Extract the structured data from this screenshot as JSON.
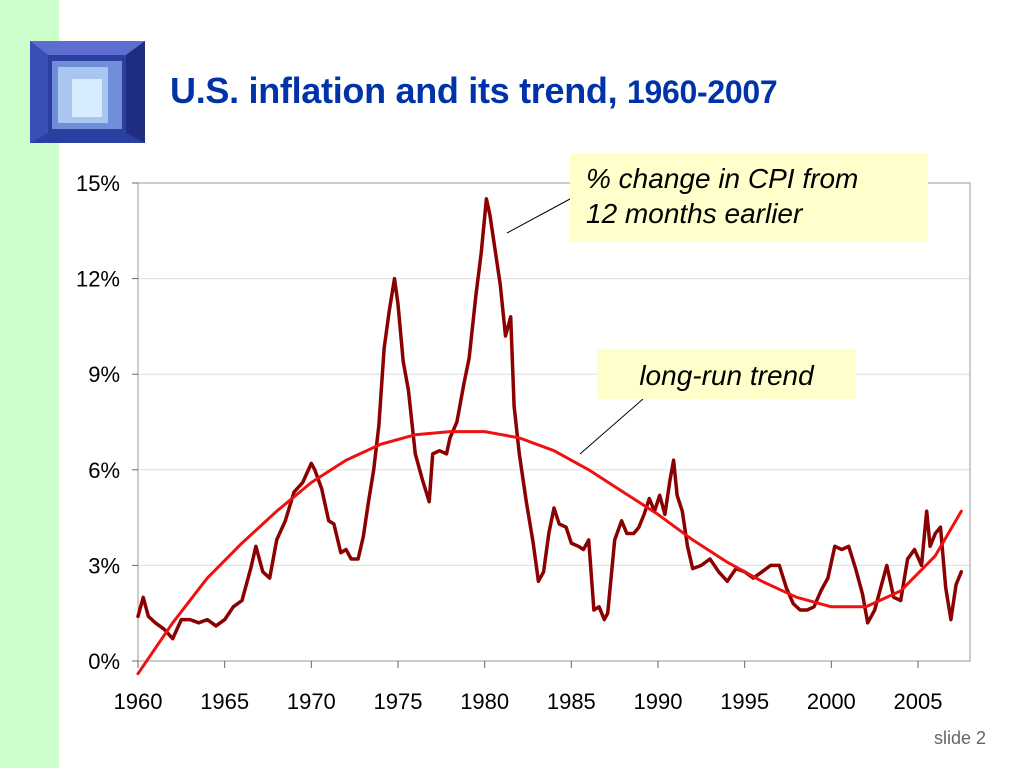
{
  "slide": {
    "title_main": "U.S. inflation and its trend,",
    "title_years": "1960-2007",
    "slide_label": "slide 2"
  },
  "colors": {
    "title": "#0033aa",
    "left_bar": "#ccffcc",
    "cpi_line": "#8b0000",
    "trend_line": "#ee1111",
    "callout_bg": "#ffffcc"
  },
  "annotations": {
    "cpi_line1": "% change in CPI from",
    "cpi_line2": "12 months earlier",
    "trend": "long-run trend"
  },
  "chart_data": {
    "type": "line",
    "title": "U.S. inflation and its trend, 1960-2007",
    "xlabel": "",
    "ylabel": "",
    "xlim": [
      1960,
      2008
    ],
    "ylim": [
      0,
      15
    ],
    "x_ticks": [
      1960,
      1965,
      1970,
      1975,
      1980,
      1985,
      1990,
      1995,
      2000,
      2005
    ],
    "y_ticks": [
      0,
      3,
      6,
      9,
      12,
      15
    ],
    "y_tick_labels": [
      "0%",
      "3%",
      "6%",
      "9%",
      "12%",
      "15%"
    ],
    "grid": "horizontal",
    "series": [
      {
        "name": "% change in CPI from 12 months earlier",
        "x": [
          1960.0,
          1960.3,
          1960.6,
          1961.0,
          1961.5,
          1962.0,
          1962.5,
          1963.0,
          1963.5,
          1964.0,
          1964.5,
          1965.0,
          1965.5,
          1966.0,
          1966.5,
          1966.8,
          1967.2,
          1967.6,
          1968.0,
          1968.5,
          1969.0,
          1969.5,
          1970.0,
          1970.2,
          1970.6,
          1971.0,
          1971.3,
          1971.7,
          1972.0,
          1972.3,
          1972.7,
          1973.0,
          1973.3,
          1973.6,
          1973.9,
          1974.2,
          1974.5,
          1974.8,
          1975.0,
          1975.3,
          1975.6,
          1976.0,
          1976.4,
          1976.8,
          1977.0,
          1977.4,
          1977.8,
          1978.0,
          1978.4,
          1978.8,
          1979.1,
          1979.5,
          1979.8,
          1980.1,
          1980.3,
          1980.6,
          1980.9,
          1981.2,
          1981.5,
          1981.7,
          1982.0,
          1982.4,
          1982.8,
          1983.1,
          1983.4,
          1983.7,
          1984.0,
          1984.3,
          1984.7,
          1985.0,
          1985.4,
          1985.7,
          1986.0,
          1986.3,
          1986.6,
          1986.9,
          1987.1,
          1987.5,
          1987.9,
          1988.2,
          1988.6,
          1988.9,
          1989.2,
          1989.5,
          1989.8,
          1990.1,
          1990.4,
          1990.7,
          1990.9,
          1991.1,
          1991.4,
          1991.7,
          1992.0,
          1992.5,
          1993.0,
          1993.5,
          1994.0,
          1994.5,
          1995.0,
          1995.5,
          1996.0,
          1996.5,
          1997.0,
          1997.4,
          1997.8,
          1998.2,
          1998.6,
          1999.0,
          1999.4,
          1999.8,
          2000.2,
          2000.6,
          2001.0,
          2001.4,
          2001.8,
          2002.1,
          2002.5,
          2002.9,
          2003.2,
          2003.6,
          2004.0,
          2004.4,
          2004.8,
          2005.2,
          2005.5,
          2005.7,
          2006.0,
          2006.3,
          2006.6,
          2006.9,
          2007.2,
          2007.5
        ],
        "y": [
          1.4,
          2.0,
          1.4,
          1.2,
          1.0,
          0.7,
          1.3,
          1.3,
          1.2,
          1.3,
          1.1,
          1.3,
          1.7,
          1.9,
          2.9,
          3.6,
          2.8,
          2.6,
          3.8,
          4.4,
          5.3,
          5.6,
          6.2,
          6.0,
          5.4,
          4.4,
          4.3,
          3.4,
          3.5,
          3.2,
          3.2,
          3.9,
          5.0,
          6.0,
          7.4,
          9.8,
          11.0,
          12.0,
          11.2,
          9.4,
          8.5,
          6.5,
          5.7,
          5.0,
          6.5,
          6.6,
          6.5,
          7.0,
          7.5,
          8.7,
          9.5,
          11.5,
          12.8,
          14.5,
          14.0,
          12.9,
          11.8,
          10.2,
          10.8,
          8.0,
          6.5,
          5.0,
          3.7,
          2.5,
          2.8,
          4.0,
          4.8,
          4.3,
          4.2,
          3.7,
          3.6,
          3.5,
          3.8,
          1.6,
          1.7,
          1.3,
          1.5,
          3.8,
          4.4,
          4.0,
          4.0,
          4.2,
          4.6,
          5.1,
          4.7,
          5.2,
          4.6,
          5.7,
          6.3,
          5.2,
          4.7,
          3.6,
          2.9,
          3.0,
          3.2,
          2.8,
          2.5,
          2.9,
          2.8,
          2.6,
          2.8,
          3.0,
          3.0,
          2.3,
          1.8,
          1.6,
          1.6,
          1.7,
          2.2,
          2.6,
          3.6,
          3.5,
          3.6,
          2.9,
          2.1,
          1.2,
          1.6,
          2.4,
          3.0,
          2.0,
          1.9,
          3.2,
          3.5,
          3.0,
          4.7,
          3.6,
          4.0,
          4.2,
          2.3,
          1.3,
          2.4,
          2.8
        ]
      },
      {
        "name": "long-run trend",
        "x": [
          1960,
          1962,
          1964,
          1966,
          1968,
          1970,
          1972,
          1974,
          1976,
          1978,
          1980,
          1982,
          1984,
          1986,
          1988,
          1990,
          1992,
          1994,
          1996,
          1998,
          2000,
          2002,
          2004,
          2006,
          2007.5
        ],
        "y": [
          -0.4,
          1.2,
          2.6,
          3.7,
          4.7,
          5.6,
          6.3,
          6.8,
          7.1,
          7.2,
          7.2,
          7.0,
          6.6,
          6.0,
          5.3,
          4.6,
          3.8,
          3.1,
          2.5,
          2.0,
          1.7,
          1.7,
          2.2,
          3.3,
          4.7
        ]
      }
    ]
  }
}
